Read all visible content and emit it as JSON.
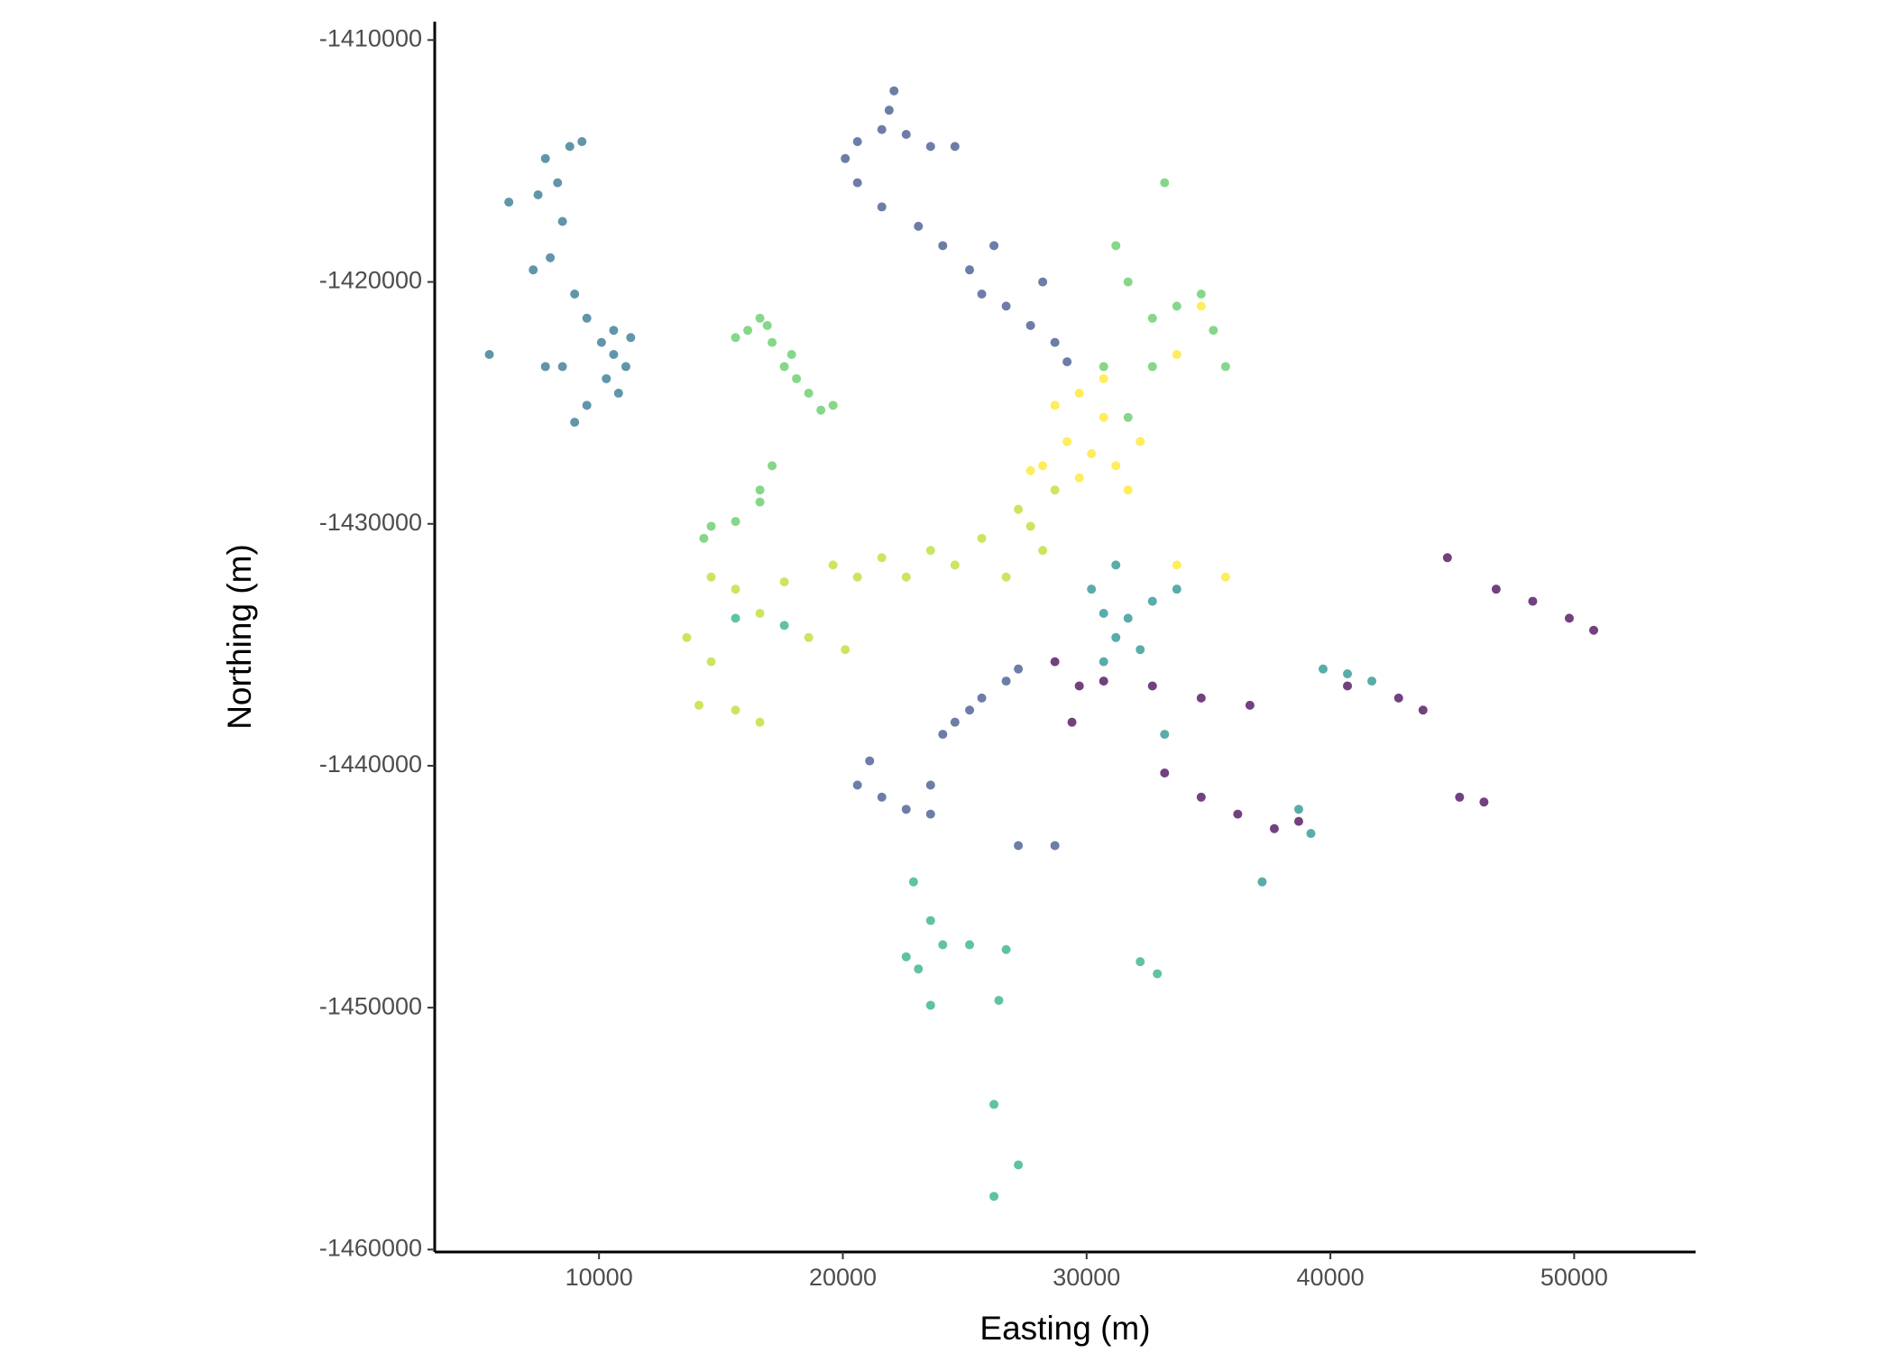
{
  "chart_data": {
    "type": "scatter",
    "x_label": "Easting (m)",
    "y_label": "Northing (m)",
    "xlim": [
      3260,
      54980
    ],
    "ylim": [
      -1460100,
      -1409240
    ],
    "xticks": [
      10000,
      20000,
      30000,
      40000,
      50000
    ],
    "yticks": [
      -1410000,
      -1420000,
      -1430000,
      -1440000,
      -1450000,
      -1460000
    ],
    "series": [
      {
        "color": "#2c728e",
        "x": [
          7500,
          7800,
          8300,
          8800,
          9300,
          8500,
          8000,
          9000,
          9500,
          10100,
          10600,
          11100,
          10300,
          10800,
          9500,
          9000,
          10600,
          11300,
          7300,
          6300,
          5500,
          7800,
          8500
        ],
        "y": [
          -1416400,
          -1414900,
          -1415900,
          -1414400,
          -1414200,
          -1417500,
          -1419000,
          -1420500,
          -1421500,
          -1422500,
          -1423000,
          -1423500,
          -1424000,
          -1424600,
          -1425100,
          -1425800,
          -1422000,
          -1422300,
          -1419500,
          -1416700,
          -1423000,
          -1423500,
          -1423500
        ]
      },
      {
        "color": "#3b528b",
        "x": [
          20100,
          20600,
          21600,
          22600,
          23600,
          24600,
          22100,
          21900,
          20600,
          21600,
          23100,
          24100,
          25200,
          25700,
          26700,
          27700,
          28700,
          29200,
          28200,
          26200,
          20600,
          21600,
          22600,
          23600,
          24100,
          25200,
          25700,
          26700,
          27200,
          24600,
          21100,
          23600,
          27200,
          28700
        ],
        "y": [
          -1414900,
          -1414200,
          -1413700,
          -1413900,
          -1414400,
          -1414400,
          -1412100,
          -1412900,
          -1415900,
          -1416900,
          -1417700,
          -1418500,
          -1419500,
          -1420500,
          -1421000,
          -1421800,
          -1422500,
          -1423300,
          -1420000,
          -1418500,
          -1440800,
          -1441300,
          -1441800,
          -1442000,
          -1438700,
          -1437700,
          -1437200,
          -1436500,
          -1436000,
          -1438200,
          -1439800,
          -1440800,
          -1443300,
          -1443300
        ]
      },
      {
        "color": "#440154",
        "x": [
          28700,
          29700,
          30700,
          32700,
          34700,
          36700,
          33200,
          34700,
          36200,
          37700,
          38700,
          40700,
          42800,
          43800,
          44800,
          46800,
          48300,
          49800,
          50800,
          45300,
          46300,
          29400
        ],
        "y": [
          -1435700,
          -1436700,
          -1436500,
          -1436700,
          -1437200,
          -1437500,
          -1440300,
          -1441300,
          -1442000,
          -1442600,
          -1442300,
          -1436700,
          -1437200,
          -1437700,
          -1431400,
          -1432700,
          -1433200,
          -1433900,
          -1434400,
          -1441300,
          -1441500,
          -1438200
        ]
      },
      {
        "color": "#21908c",
        "x": [
          30200,
          30700,
          31200,
          31700,
          32700,
          33700,
          31200,
          32200,
          39700,
          40700,
          41700,
          38700,
          39200,
          37200,
          30700,
          33200
        ],
        "y": [
          -1432700,
          -1433700,
          -1434700,
          -1433900,
          -1433200,
          -1432700,
          -1431700,
          -1435200,
          -1436000,
          -1436200,
          -1436500,
          -1441800,
          -1442800,
          -1444800,
          -1435700,
          -1438700
        ]
      },
      {
        "color": "#29af7f",
        "x": [
          22900,
          23600,
          24100,
          23100,
          22600,
          25200,
          26700,
          26400,
          23600,
          32200,
          32900,
          26200,
          27200,
          26200,
          17600,
          15600
        ],
        "y": [
          -1444800,
          -1446400,
          -1447400,
          -1448400,
          -1447900,
          -1447400,
          -1447600,
          -1449700,
          -1449900,
          -1448100,
          -1448600,
          -1454000,
          -1456500,
          -1457800,
          -1434200,
          -1433900
        ]
      },
      {
        "color": "#5ec962",
        "x": [
          16100,
          16600,
          17100,
          17600,
          18100,
          18600,
          19100,
          19600,
          16900,
          15600,
          17900,
          17100,
          16600,
          14600,
          14300,
          15600,
          16600,
          31200,
          31700,
          32700,
          33700,
          34700,
          35200,
          35700,
          33200,
          32700,
          31700,
          30700
        ],
        "y": [
          -1422000,
          -1421500,
          -1422500,
          -1423500,
          -1424000,
          -1424600,
          -1425300,
          -1425100,
          -1421800,
          -1422300,
          -1423000,
          -1427600,
          -1429100,
          -1430100,
          -1430600,
          -1429900,
          -1428600,
          -1418500,
          -1420000,
          -1421500,
          -1421000,
          -1420500,
          -1422000,
          -1423500,
          -1415900,
          -1423500,
          -1425600,
          -1423500
        ]
      },
      {
        "color": "#b8de29",
        "x": [
          14600,
          15600,
          17600,
          19600,
          21600,
          23600,
          25700,
          27700,
          28200,
          26700,
          24600,
          22600,
          20600,
          13600,
          14600,
          15600,
          16600,
          14100,
          18600,
          20100,
          16600,
          28700,
          27200
        ],
        "y": [
          -1432200,
          -1432700,
          -1432400,
          -1431700,
          -1431400,
          -1431100,
          -1430600,
          -1430100,
          -1431100,
          -1432200,
          -1431700,
          -1432200,
          -1432200,
          -1434700,
          -1435700,
          -1437700,
          -1438200,
          -1437500,
          -1434700,
          -1435200,
          -1433700,
          -1428600,
          -1429400
        ]
      },
      {
        "color": "#fde725",
        "x": [
          28700,
          29700,
          30700,
          29200,
          30200,
          31200,
          28200,
          27700,
          31700,
          30700,
          29700,
          32200,
          33700,
          34700,
          33700,
          35700
        ],
        "y": [
          -1425100,
          -1424600,
          -1425600,
          -1426600,
          -1427100,
          -1427600,
          -1427600,
          -1427800,
          -1428600,
          -1424000,
          -1428100,
          -1426600,
          -1423000,
          -1421000,
          -1431700,
          -1432200
        ]
      }
    ]
  }
}
